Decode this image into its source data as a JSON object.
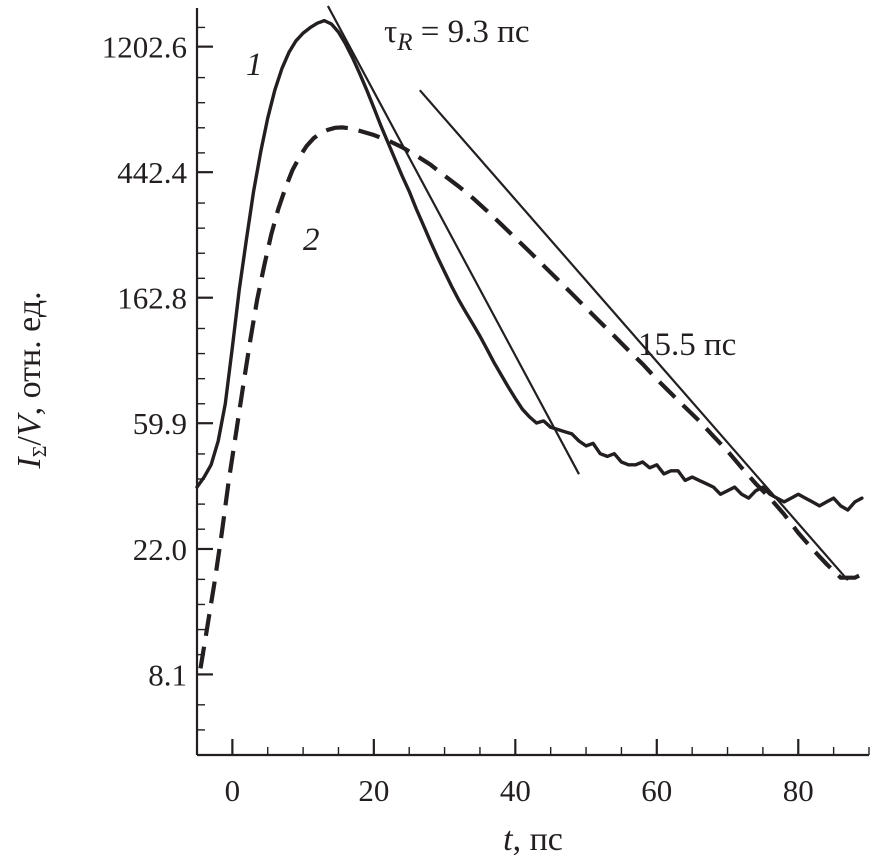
{
  "chart_data": {
    "type": "line",
    "title": "",
    "xlabel": {
      "italic": "t",
      "rest": ", пс"
    },
    "ylabel": {
      "I": "I",
      "sub": "Σ",
      "slash": "/",
      "V": "V",
      "rest": ", отн. ед."
    },
    "x_ticks": [
      0,
      20,
      40,
      60,
      80
    ],
    "y_ticks": [
      "8.1",
      "22.0",
      "59.9",
      "162.8",
      "442.4",
      "1202.6"
    ],
    "xlim": [
      -5,
      90
    ],
    "ylim_log_e": [
      1.45,
      7.4
    ],
    "y_scale": "log",
    "grid": false,
    "series": [
      {
        "name": "1",
        "style": "solid",
        "x": [
          -5,
          -4,
          -3,
          -2,
          -1,
          0,
          1,
          2,
          3,
          4,
          5,
          6,
          7,
          8,
          9,
          10,
          11,
          12,
          13,
          14,
          15,
          16,
          17,
          18,
          19,
          20,
          21,
          22,
          23,
          24,
          25,
          26,
          27,
          28,
          29,
          30,
          31,
          32,
          33,
          34,
          35,
          36,
          37,
          38,
          39,
          40,
          41,
          42,
          43,
          44,
          45,
          46,
          47,
          48,
          49,
          50,
          51,
          52,
          53,
          54,
          55,
          56,
          57,
          58,
          59,
          60,
          61,
          62,
          63,
          64,
          65,
          66,
          67,
          68,
          69,
          70,
          71,
          72,
          73,
          74,
          75,
          76,
          77,
          78,
          79,
          80,
          81,
          82,
          83,
          84,
          85,
          86,
          87,
          88,
          89
        ],
        "y": [
          36,
          39,
          43,
          52,
          70,
          110,
          175,
          260,
          380,
          520,
          680,
          850,
          1010,
          1150,
          1260,
          1340,
          1400,
          1450,
          1480,
          1440,
          1350,
          1230,
          1100,
          970,
          850,
          740,
          640,
          560,
          490,
          430,
          380,
          330,
          290,
          255,
          225,
          200,
          178,
          160,
          145,
          132,
          120,
          108,
          97,
          88,
          80,
          73,
          67,
          63,
          60,
          61,
          58,
          57,
          56,
          55,
          52,
          50,
          51,
          47,
          46,
          47,
          44,
          43,
          43,
          44,
          42,
          43,
          40,
          41,
          41,
          38,
          39,
          38,
          37,
          36,
          34,
          35,
          36,
          34,
          33,
          35,
          36,
          34,
          33,
          32,
          33,
          34,
          33,
          32,
          31,
          32,
          33,
          31,
          30,
          32,
          33
        ]
      },
      {
        "name": "2",
        "style": "dashed",
        "x": [
          -4.5,
          -3.5,
          -2.5,
          -1.5,
          -0.5,
          0.5,
          1.5,
          2.5,
          3.5,
          4.5,
          5.5,
          6.5,
          7.5,
          8.5,
          9.5,
          10.5,
          11.5,
          12.5,
          13.5,
          14.5,
          15.5,
          16.5,
          17.5,
          18.5,
          20,
          22,
          24,
          26,
          28,
          30,
          32,
          34,
          36,
          38,
          40,
          42,
          44,
          46,
          48,
          50,
          52,
          54,
          56,
          58,
          60,
          62,
          64,
          66,
          68,
          70,
          72,
          74,
          76,
          78,
          80,
          82,
          84,
          86,
          88,
          89
        ],
        "y": [
          8.5,
          12,
          17,
          25,
          38,
          55,
          80,
          115,
          160,
          210,
          270,
          330,
          390,
          450,
          500,
          545,
          580,
          605,
          620,
          630,
          632,
          628,
          620,
          610,
          595,
          570,
          540,
          505,
          470,
          430,
          395,
          360,
          325,
          292,
          262,
          235,
          210,
          188,
          168,
          150,
          134,
          120,
          107,
          96,
          85,
          76,
          68,
          61,
          54,
          48,
          42,
          37,
          33,
          29,
          25,
          22,
          19.5,
          17.5,
          17.5,
          18
        ]
      }
    ],
    "fit_lines": [
      {
        "label": "τ",
        "label_sub": "R",
        "label_rest": " = 9.3 пс",
        "tau": 9.3,
        "x_range": [
          13.5,
          49
        ],
        "anchor": [
          12.6,
          2000
        ]
      },
      {
        "label": "15.5 пс",
        "tau": 15.5,
        "x_range": [
          26.5,
          87
        ],
        "anchor": [
          26.5,
          850
        ]
      }
    ],
    "curve_labels": [
      "1",
      "2"
    ]
  }
}
